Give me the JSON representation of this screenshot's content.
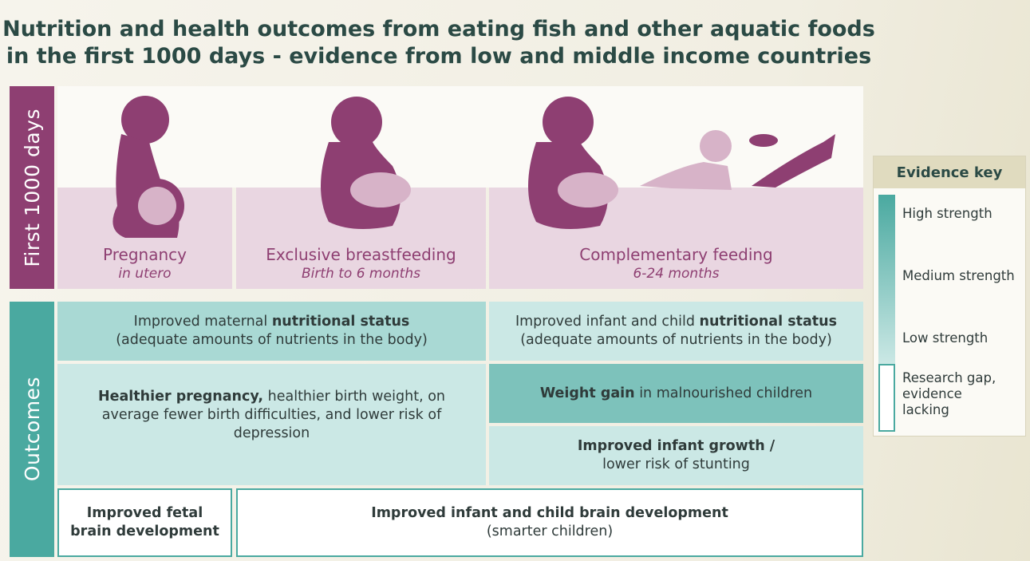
{
  "title": [
    "Nutrition and health outcomes from eating fish and other aquatic foods",
    "in the first 1000 days - evidence from low and middle income countries"
  ],
  "side_labels": {
    "stages": "First 1000 days",
    "outcomes": "Outcomes"
  },
  "stages": [
    {
      "name": "Pregnancy",
      "period": "in utero"
    },
    {
      "name": "Exclusive breastfeeding",
      "period": "Birth to 6 months"
    },
    {
      "name": "Complementary feeding",
      "period": "6-24 months"
    }
  ],
  "outcomes": [
    {
      "color": "#a9d9d4",
      "lines": [
        [
          {
            "text": "Improved maternal "
          },
          {
            "text": "nutritional status",
            "bold": true
          }
        ],
        [
          {
            "text": "(adequate amounts of nutrients in the body)"
          }
        ]
      ]
    },
    {
      "color": "#cbe8e5",
      "lines": [
        [
          {
            "text": "Improved infant and child "
          },
          {
            "text": "nutritional status",
            "bold": true
          }
        ],
        [
          {
            "text": "(adequate amounts of nutrients in the body)"
          }
        ]
      ]
    },
    {
      "color": "#cbe8e5",
      "lines": [
        [
          {
            "text": "Healthier pregnancy,",
            "bold": true
          },
          {
            "text": " healthier birth weight, on"
          }
        ],
        [
          {
            "text": "average fewer birth difficulties, and lower risk of"
          }
        ],
        [
          {
            "text": "depression"
          }
        ]
      ]
    },
    {
      "color": "#7dc2bb",
      "lines": [
        [
          {
            "text": "Weight gain",
            "bold": true
          },
          {
            "text": " in malnourished children"
          }
        ]
      ]
    },
    {
      "color": "#cbe8e5",
      "lines": [
        [
          {
            "text": "Improved infant growth /",
            "bold": true
          }
        ],
        [
          {
            "text": "lower risk of stunting"
          }
        ]
      ]
    },
    {
      "color": "#ffffff",
      "lines": [
        [
          {
            "text": "Improved fetal",
            "bold": true
          }
        ],
        [
          {
            "text": "brain development",
            "bold": true
          }
        ]
      ]
    },
    {
      "color": "#ffffff",
      "lines": [
        [
          {
            "text": "Improved infant and child brain development",
            "bold": true
          }
        ],
        [
          {
            "text": "(smarter children)"
          }
        ]
      ]
    }
  ],
  "evidence_key": {
    "title": "Evidence key",
    "levels": [
      "High strength",
      "Medium strength",
      "Low strength",
      [
        "Research gap,",
        "evidence",
        "lacking"
      ]
    ]
  }
}
